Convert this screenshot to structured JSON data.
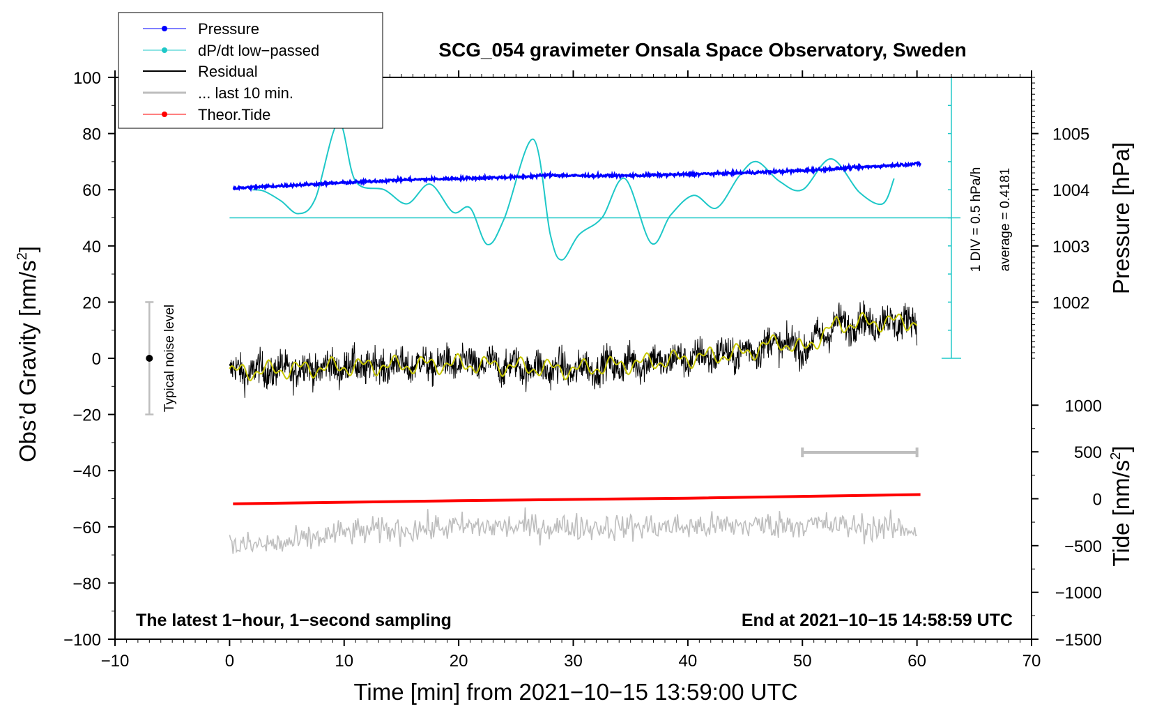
{
  "chart_data": {
    "type": "line",
    "title": "SCG_054 gravimeter Onsala Space Observatory, Sweden",
    "xlabel": "Time [min] from 2021−10−15 13:59:00 UTC",
    "ylabel_left": "Obs’d Gravity [nm/s",
    "ylabel_left_sup": "2",
    "ylabel_left_end": "]",
    "ylabel_right_top": "Pressure [hPa]",
    "ylabel_right_bottom": "Tide [nm/s",
    "ylabel_right_bottom_sup": "2",
    "ylabel_right_bottom_end": "]",
    "xlim": [
      -10,
      70
    ],
    "ylim": [
      -100,
      100
    ],
    "x_ticks": [
      -10,
      0,
      10,
      20,
      30,
      40,
      50,
      60,
      70
    ],
    "x_tick_labels": [
      "−10",
      "0",
      "10",
      "20",
      "30",
      "40",
      "50",
      "60",
      "70"
    ],
    "y_ticks": [
      -100,
      -80,
      -60,
      -40,
      -20,
      0,
      20,
      40,
      60,
      80,
      100
    ],
    "y_tick_labels": [
      "−100",
      "−80",
      "−60",
      "−40",
      "−20",
      "0",
      "20",
      "40",
      "60",
      "80",
      "100"
    ],
    "pressure_axis": {
      "ticks": [
        1002,
        1003,
        1004,
        1005
      ],
      "tick_labels": [
        "1002",
        "1003",
        "1004",
        "1005"
      ],
      "gravity_equiv": [
        20,
        40,
        60,
        80
      ]
    },
    "tide_axis": {
      "ticks": [
        -1500,
        -1000,
        -500,
        0,
        500,
        1000
      ],
      "tick_labels": [
        "−1500",
        "−1000",
        "−500",
        "0",
        "500",
        "1000"
      ],
      "gravity_equiv": [
        -100,
        -83.3,
        -66.7,
        -50,
        -33.3,
        -16.7
      ]
    },
    "series": [
      {
        "name": "Pressure",
        "color": "#0000ff",
        "x": [
          0.3,
          5,
          10,
          15,
          20,
          25,
          28,
          30,
          35,
          40,
          45,
          50,
          55,
          60.3
        ],
        "values": [
          60.5,
          61.5,
          62.5,
          63.5,
          64,
          64.5,
          65.2,
          65,
          65,
          65.5,
          66,
          66.8,
          68,
          69.3
        ]
      },
      {
        "name": "dP/dt low−passed",
        "color": "#1ec8c8",
        "x": [
          2,
          3,
          4.5,
          6,
          7.5,
          9.5,
          11,
          13.5,
          15.5,
          17.5,
          19.5,
          21,
          22.5,
          24,
          26.5,
          28,
          29,
          30.5,
          32.5,
          34.5,
          36.8,
          38.5,
          40.5,
          42.5,
          44.5,
          46,
          48,
          50,
          52.5,
          55,
          57,
          58
        ],
        "values": [
          60,
          59.5,
          56,
          51.5,
          57,
          84,
          63,
          60,
          55,
          62,
          52,
          53.5,
          40.5,
          50,
          78,
          44,
          35,
          44,
          50,
          64,
          41,
          51,
          58,
          53.5,
          65,
          70,
          63,
          60,
          71,
          59,
          55,
          64
        ]
      },
      {
        "name": "Residual",
        "color": "#000000",
        "x": [
          0,
          10,
          20,
          30,
          40,
          45,
          48,
          50,
          53,
          57,
          60
        ],
        "values": [
          -5,
          -3,
          -2,
          -4,
          0,
          2,
          6,
          3,
          12,
          13,
          13
        ]
      },
      {
        "name": "... last 10 min.",
        "color": "#bebebe",
        "x": [
          50,
          60
        ],
        "values": [
          -33.5,
          -33.5
        ]
      },
      {
        "name": "Theor.Tide",
        "color": "#ff0000",
        "x": [
          0.3,
          20,
          40,
          60.3
        ],
        "values": [
          -51.8,
          -50.7,
          -49.8,
          -48.5
        ]
      },
      {
        "name": "Residual smoothed",
        "color": "#c8c800",
        "x": [
          0,
          10,
          20,
          30,
          40,
          45,
          48,
          50,
          53,
          57,
          60
        ],
        "values": [
          -5,
          -3,
          -2,
          -4,
          0,
          2,
          6,
          3,
          12,
          13,
          13
        ]
      },
      {
        "name": "Noise (offset)",
        "color": "#bebebe",
        "x": [
          0,
          5,
          10,
          20,
          30,
          40,
          50,
          60
        ],
        "values": [
          -67,
          -66,
          -62,
          -60,
          -60,
          -60,
          -59,
          -61
        ]
      }
    ],
    "legend": [
      "Pressure",
      "dP/dt low−passed",
      "Residual",
      "... last 10 min.",
      "Theor.Tide"
    ],
    "legend_position": "top-left",
    "scale_bar": {
      "line1": "1 DIV = 0.5 hPa/h",
      "line2": "average = 0.4181"
    },
    "noise_label": "Typical noise level",
    "noise_range": [
      -20,
      20
    ],
    "bottom_left_text": "The latest 1−hour, 1−second sampling",
    "bottom_right_text": "End at 2021−10−15 14:58:59 UTC"
  }
}
